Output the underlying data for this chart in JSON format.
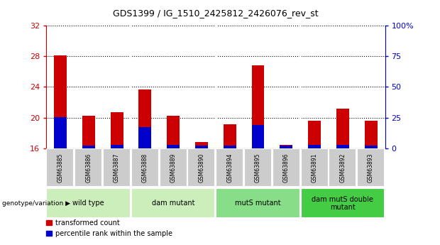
{
  "title": "GDS1399 / IG_1510_2425812_2426076_rev_st",
  "samples": [
    "GSM63885",
    "GSM63886",
    "GSM63887",
    "GSM63888",
    "GSM63889",
    "GSM63890",
    "GSM63894",
    "GSM63895",
    "GSM63896",
    "GSM63891",
    "GSM63892",
    "GSM63893"
  ],
  "red_heights": [
    28.1,
    20.2,
    20.7,
    23.7,
    20.2,
    16.8,
    19.1,
    26.8,
    16.4,
    19.6,
    21.2,
    19.6
  ],
  "blue_heights": [
    20.05,
    16.38,
    16.42,
    18.75,
    16.42,
    16.38,
    16.38,
    19.05,
    16.38,
    16.42,
    16.45,
    16.38
  ],
  "ylim": [
    16,
    32
  ],
  "yticks": [
    16,
    20,
    24,
    28,
    32
  ],
  "right_ytick_values": [
    0,
    25,
    50,
    75,
    100
  ],
  "right_ytick_labels": [
    "0",
    "25",
    "50",
    "75",
    "100%"
  ],
  "groups": [
    {
      "label": "wild type",
      "start": 0,
      "end": 3,
      "color": "#cceebb"
    },
    {
      "label": "dam mutant",
      "start": 3,
      "end": 6,
      "color": "#cceebb"
    },
    {
      "label": "mutS mutant",
      "start": 6,
      "end": 9,
      "color": "#88dd88"
    },
    {
      "label": "dam mutS double\nmutant",
      "start": 9,
      "end": 12,
      "color": "#44cc44"
    }
  ],
  "bar_color_red": "#cc0000",
  "bar_color_blue": "#0000cc",
  "bar_width": 0.45,
  "legend_red_label": "transformed count",
  "legend_blue_label": "percentile rank within the sample",
  "left_tick_color": "#cc0000",
  "right_tick_color": "#0000cc",
  "genotype_label": "genotype/variation"
}
